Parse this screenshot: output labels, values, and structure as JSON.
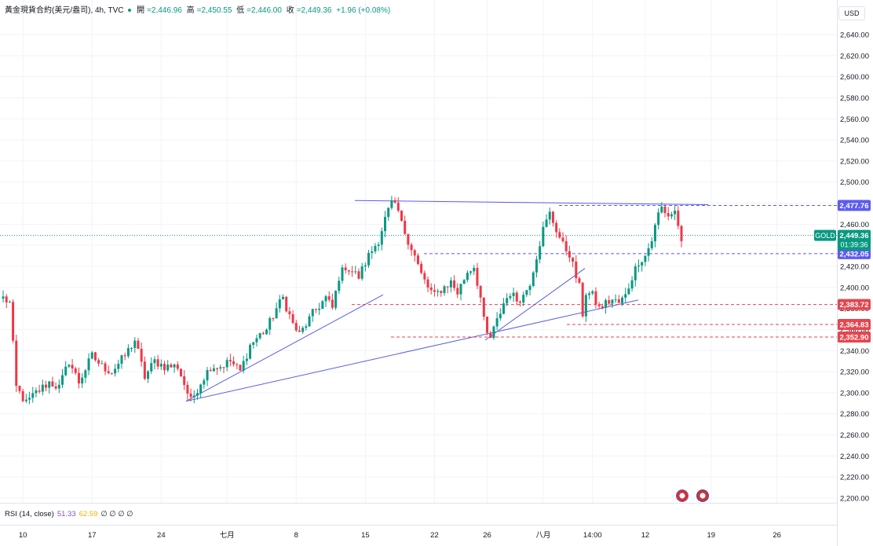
{
  "header": {
    "symbol": "黃金現貨合約(美元/盎司), 4h, TVC",
    "open_label": "開",
    "open": "=2,446.96",
    "high_label": "高",
    "high": "=2,450.55",
    "low_label": "低",
    "low": "=2,446.00",
    "close_label": "收",
    "close": "=2,449.36",
    "change": "+1.96 (+0.08%)"
  },
  "currency": "USD",
  "rsi": {
    "label": "RSI (14, close)",
    "value1": "51.33",
    "value2": "62.59",
    "zeros": "∅ ∅ ∅ ∅"
  },
  "colors": {
    "up": "#089981",
    "down": "#f23645",
    "line": "#5b5bf0",
    "support": "#e5464f",
    "gold_tag": "#089981"
  },
  "chart_data": {
    "type": "candlestick",
    "ylim": [
      2190,
      2655
    ],
    "yticks": [
      "2,640.00",
      "2,620.00",
      "2,600.00",
      "2,580.00",
      "2,560.00",
      "2,540.00",
      "2,520.00",
      "2,500.00",
      "2,480.00",
      "2,460.00",
      "2,440.00",
      "2,420.00",
      "2,400.00",
      "2,380.00",
      "2,360.00",
      "2,340.00",
      "2,320.00",
      "2,300.00",
      "2,280.00",
      "2,260.00",
      "2,240.00",
      "2,220.00",
      "2,200.00"
    ],
    "ytick_values": [
      2640,
      2620,
      2600,
      2580,
      2560,
      2540,
      2520,
      2500,
      2480,
      2460,
      2440,
      2420,
      2400,
      2380,
      2360,
      2340,
      2320,
      2300,
      2280,
      2260,
      2240,
      2220,
      2200
    ],
    "xticks": [
      "10",
      "17",
      "24",
      "七月",
      "8",
      "15",
      "22",
      "26",
      "八月",
      "14:00",
      "12",
      "19",
      "26"
    ],
    "bar_count": 206,
    "xtick_bars": [
      6,
      27,
      48,
      68,
      89,
      110,
      131,
      147,
      164,
      179,
      195,
      215,
      235
    ],
    "price_tags": [
      {
        "label": "2,477.76",
        "value": 2477.76,
        "color": "#5b5bf0",
        "style": "blue"
      },
      {
        "label": "2,432.05",
        "value": 2432.05,
        "color": "#5b5bf0",
        "style": "blue"
      },
      {
        "label": "2,383.72",
        "value": 2383.72,
        "color": "#e5464f",
        "style": "red"
      },
      {
        "label": "2,364.83",
        "value": 2364.83,
        "color": "#e5464f",
        "style": "red"
      },
      {
        "label": "2,352.90",
        "value": 2352.9,
        "color": "#e5464f",
        "style": "red"
      }
    ],
    "last_price": {
      "symbol": "GOLD",
      "label": "2,449.36",
      "countdown": "01:39:36",
      "value": 2449.36
    },
    "anchors": [
      [
        0,
        2390
      ],
      [
        2,
        2385
      ],
      [
        3,
        2345
      ],
      [
        4,
        2305
      ],
      [
        7,
        2290
      ],
      [
        10,
        2300
      ],
      [
        14,
        2310
      ],
      [
        17,
        2305
      ],
      [
        20,
        2330
      ],
      [
        23,
        2310
      ],
      [
        27,
        2335
      ],
      [
        30,
        2325
      ],
      [
        33,
        2320
      ],
      [
        37,
        2335
      ],
      [
        40,
        2350
      ],
      [
        43,
        2315
      ],
      [
        46,
        2330
      ],
      [
        49,
        2325
      ],
      [
        53,
        2325
      ],
      [
        56,
        2300
      ],
      [
        57,
        2292
      ],
      [
        60,
        2310
      ],
      [
        63,
        2325
      ],
      [
        66,
        2325
      ],
      [
        69,
        2330
      ],
      [
        72,
        2320
      ],
      [
        75,
        2345
      ],
      [
        78,
        2355
      ],
      [
        80,
        2360
      ],
      [
        83,
        2380
      ],
      [
        85,
        2390
      ],
      [
        88,
        2365
      ],
      [
        90,
        2355
      ],
      [
        94,
        2375
      ],
      [
        98,
        2390
      ],
      [
        100,
        2380
      ],
      [
        102,
        2410
      ],
      [
        104,
        2420
      ],
      [
        106,
        2415
      ],
      [
        108,
        2410
      ],
      [
        111,
        2430
      ],
      [
        114,
        2445
      ],
      [
        116,
        2465
      ],
      [
        118,
        2480
      ],
      [
        120,
        2472
      ],
      [
        121,
        2460
      ],
      [
        123,
        2445
      ],
      [
        125,
        2430
      ],
      [
        127,
        2412
      ],
      [
        129,
        2400
      ],
      [
        131,
        2392
      ],
      [
        133,
        2398
      ],
      [
        136,
        2405
      ],
      [
        138,
        2395
      ],
      [
        141,
        2415
      ],
      [
        143,
        2420
      ],
      [
        145,
        2390
      ],
      [
        146,
        2368
      ],
      [
        147,
        2355
      ],
      [
        148,
        2352
      ],
      [
        150,
        2368
      ],
      [
        152,
        2385
      ],
      [
        154,
        2395
      ],
      [
        156,
        2388
      ],
      [
        158,
        2392
      ],
      [
        160,
        2405
      ],
      [
        162,
        2430
      ],
      [
        164,
        2455
      ],
      [
        166,
        2470
      ],
      [
        168,
        2455
      ],
      [
        170,
        2440
      ],
      [
        172,
        2432
      ],
      [
        174,
        2410
      ],
      [
        175,
        2400
      ],
      [
        176,
        2375
      ],
      [
        177,
        2395
      ],
      [
        179,
        2392
      ],
      [
        181,
        2380
      ],
      [
        183,
        2385
      ],
      [
        185,
        2388
      ],
      [
        187,
        2385
      ],
      [
        189,
        2392
      ],
      [
        191,
        2410
      ],
      [
        193,
        2425
      ],
      [
        195,
        2430
      ],
      [
        197,
        2445
      ],
      [
        199,
        2470
      ],
      [
        200,
        2476
      ],
      [
        202,
        2468
      ],
      [
        204,
        2472
      ],
      [
        205,
        2460
      ],
      [
        206,
        2440
      ],
      [
        207,
        2448
      ]
    ]
  }
}
